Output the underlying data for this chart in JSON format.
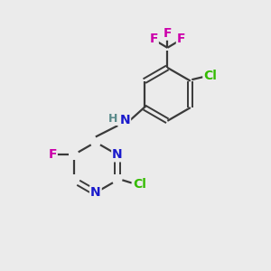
{
  "background_color": "#ebebeb",
  "bond_color": "#3a3a3a",
  "atom_colors": {
    "N": "#1a1acc",
    "F": "#cc00aa",
    "Cl": "#33bb00",
    "H": "#5a8a8a",
    "C_label": "#3a3a3a"
  }
}
